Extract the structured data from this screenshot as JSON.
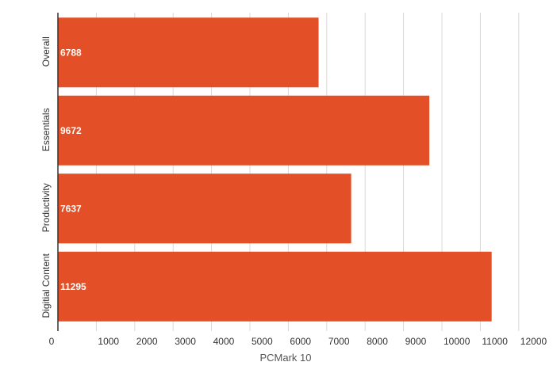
{
  "chart_data": {
    "type": "bar",
    "orientation": "horizontal",
    "categories": [
      "Overall",
      "Essentials",
      "Productivity",
      "Digitial Content"
    ],
    "values": [
      6788,
      9672,
      7637,
      11295
    ],
    "data_labels": [
      "6788",
      "9672",
      "7637",
      "11295"
    ],
    "title": "",
    "xlabel": "PCMark 10",
    "ylabel": "",
    "xlim": [
      0,
      12000
    ],
    "x_ticks": [
      0,
      1000,
      2000,
      3000,
      4000,
      5000,
      6000,
      7000,
      8000,
      9000,
      10000,
      11000,
      12000
    ],
    "x_tick_labels": [
      "0",
      "1000",
      "2000",
      "3000",
      "4000",
      "5000",
      "6000",
      "7000",
      "8000",
      "9000",
      "10000",
      "11000",
      "12000"
    ],
    "grid": "vertical",
    "legend": "none",
    "bar_color": "#e34f26",
    "grid_color": "#d9d9d9",
    "axis_color": "#333333"
  }
}
